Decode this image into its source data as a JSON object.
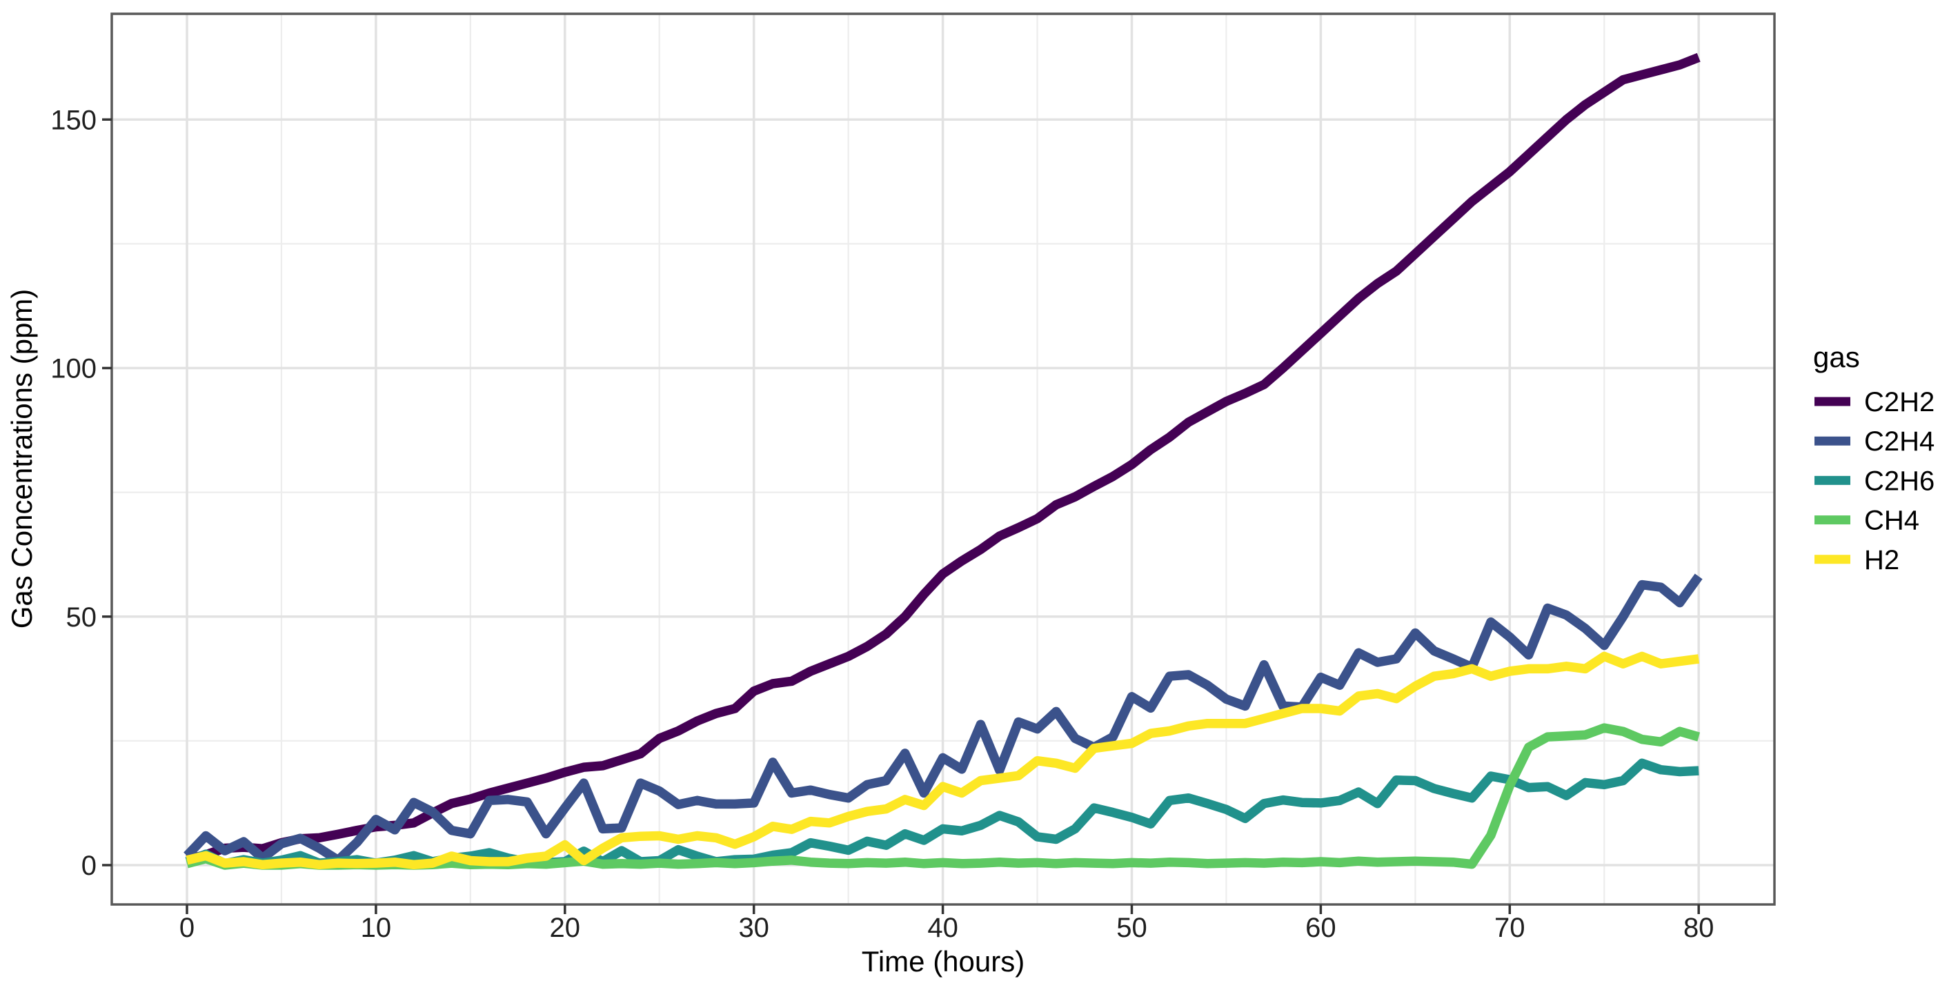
{
  "chart_data": {
    "type": "line",
    "title": "",
    "xlabel": "Time (hours)",
    "ylabel": "Gas Concentrations (ppm)",
    "legend_title": "gas",
    "legend_position": "right",
    "grid": "major+minor",
    "xlim": [
      -4,
      84
    ],
    "ylim": [
      -8,
      171
    ],
    "x_ticks": [
      0,
      10,
      20,
      30,
      40,
      50,
      60,
      70,
      80
    ],
    "x_minor_ticks": [
      5,
      15,
      25,
      35,
      45,
      55,
      65,
      75
    ],
    "y_ticks": [
      0,
      50,
      100,
      150
    ],
    "y_minor_ticks": [
      25,
      75,
      125
    ],
    "x": [
      0,
      1,
      2,
      3,
      4,
      5,
      6,
      7,
      8,
      9,
      10,
      11,
      12,
      13,
      14,
      15,
      16,
      17,
      18,
      19,
      20,
      21,
      22,
      23,
      24,
      25,
      26,
      27,
      28,
      29,
      30,
      31,
      32,
      33,
      34,
      35,
      36,
      37,
      38,
      39,
      40,
      41,
      42,
      43,
      44,
      45,
      46,
      47,
      48,
      49,
      50,
      51,
      52,
      53,
      54,
      55,
      56,
      57,
      58,
      59,
      60,
      61,
      62,
      63,
      64,
      65,
      66,
      67,
      68,
      69,
      70,
      71,
      72,
      73,
      74,
      75,
      76,
      77,
      78,
      79,
      80
    ],
    "series": [
      {
        "name": "C2H2",
        "color": "#440154",
        "values": [
          1.1,
          2.1,
          3.4,
          3.6,
          3.3,
          4.5,
          5.3,
          5.5,
          6.2,
          7,
          7.7,
          8,
          8.5,
          10.5,
          12.4,
          13.3,
          14.5,
          15.5,
          16.5,
          17.5,
          18.7,
          19.7,
          20,
          21.2,
          22.4,
          25.5,
          27,
          29,
          30.5,
          31.5,
          35,
          36.5,
          37,
          39,
          40.5,
          42,
          44,
          46.5,
          50,
          54.5,
          58.6,
          61.2,
          63.5,
          66.2,
          67.9,
          69.7,
          72.5,
          74.1,
          76.2,
          78.2,
          80.6,
          83.6,
          86.1,
          89.1,
          91.2,
          93.3,
          94.9,
          96.7,
          100,
          103.5,
          107,
          110.5,
          114,
          117,
          119.5,
          123,
          126.5,
          130,
          133.5,
          136.5,
          139.5,
          143,
          146.5,
          150,
          153,
          155.5,
          158,
          159,
          160,
          161,
          162.5
        ]
      },
      {
        "name": "C2H4",
        "color": "#3B528B",
        "values": [
          1.9,
          5.9,
          2.9,
          4.7,
          1.4,
          4.3,
          5.4,
          3.4,
          1,
          4.6,
          9.2,
          7.1,
          12.6,
          10.7,
          7,
          6.3,
          13,
          13.2,
          12.7,
          6.3,
          11.5,
          16.5,
          7.3,
          7.5,
          16.5,
          14.9,
          12.2,
          13,
          12.3,
          12.3,
          12.5,
          20.7,
          14.5,
          15.1,
          14.2,
          13.5,
          16.2,
          17,
          22.5,
          14.5,
          21.6,
          19.3,
          28.3,
          19.1,
          28.8,
          27.4,
          30.9,
          25.5,
          23.7,
          25.8,
          33.9,
          31.6,
          38,
          38.3,
          36.2,
          33.4,
          32,
          40.3,
          32,
          31.8,
          37.8,
          36.2,
          42.7,
          40.8,
          41.5,
          46.7,
          43.1,
          41.5,
          39.8,
          48.9,
          45.9,
          42.3,
          51.7,
          50.3,
          47.6,
          44.2,
          50,
          56.4,
          55.9,
          52.8,
          58.1
        ]
      },
      {
        "name": "C2H6",
        "color": "#21918C",
        "values": [
          0.7,
          2.2,
          0.3,
          1.1,
          0.4,
          1,
          1.9,
          0.4,
          0.7,
          1.1,
          0.4,
          1,
          1.9,
          0.7,
          1.4,
          1.8,
          2.5,
          1.4,
          0.7,
          0.5,
          0.7,
          2.8,
          0.7,
          2.9,
          0.7,
          0.9,
          3.1,
          1.8,
          0.7,
          1.1,
          1.2,
          2,
          2.5,
          4.5,
          3.8,
          3,
          4.8,
          4,
          6.3,
          5,
          7.3,
          6.9,
          8,
          10,
          8.7,
          5.7,
          5.2,
          7.3,
          11.5,
          10.6,
          9.6,
          8.3,
          13,
          13.5,
          12.4,
          11.2,
          9.4,
          12.4,
          13.1,
          12.6,
          12.5,
          13,
          14.7,
          12.4,
          17.1,
          17,
          15.4,
          14.4,
          13.5,
          17.9,
          17.2,
          15.6,
          15.8,
          14,
          16.6,
          16.2,
          17,
          20.5,
          19.2,
          18.8,
          19
        ]
      },
      {
        "name": "CH4",
        "color": "#5EC962",
        "values": [
          0.3,
          1.3,
          0,
          0.4,
          0,
          0,
          0.3,
          0,
          0,
          0.1,
          0,
          0.1,
          0,
          0.1,
          0.4,
          0.1,
          0.2,
          0.1,
          0.3,
          0.2,
          0.5,
          0.8,
          0.2,
          0.3,
          0.2,
          0.4,
          0.2,
          0.3,
          0.5,
          0.3,
          0.5,
          0.8,
          1,
          0.6,
          0.4,
          0.3,
          0.5,
          0.4,
          0.6,
          0.3,
          0.5,
          0.3,
          0.4,
          0.6,
          0.4,
          0.5,
          0.3,
          0.5,
          0.4,
          0.3,
          0.5,
          0.4,
          0.6,
          0.5,
          0.3,
          0.4,
          0.5,
          0.4,
          0.6,
          0.5,
          0.7,
          0.5,
          0.8,
          0.6,
          0.7,
          0.8,
          0.7,
          0.6,
          0.2,
          6,
          16,
          23.7,
          25.8,
          26,
          26.2,
          27.6,
          26.9,
          25.3,
          24.8,
          26.9,
          25.8
        ]
      },
      {
        "name": "H2",
        "color": "#FDE725",
        "values": [
          1,
          1.9,
          0.4,
          0.7,
          0.1,
          0.4,
          0.6,
          0.1,
          0.4,
          0.3,
          0.4,
          0.6,
          0.1,
          0.4,
          1.8,
          0.9,
          0.7,
          0.7,
          1.4,
          1.8,
          4.1,
          0.9,
          3.4,
          5.5,
          5.8,
          5.9,
          5.2,
          5.9,
          5.5,
          4.2,
          5.7,
          7.8,
          7.2,
          8.8,
          8.5,
          9.8,
          10.8,
          11.3,
          13.2,
          12,
          15.8,
          14.5,
          17,
          17.5,
          18,
          21,
          20.5,
          19.5,
          23.5,
          24,
          24.5,
          26.5,
          27,
          28,
          28.5,
          28.5,
          28.5,
          29.5,
          30.5,
          31.5,
          31.5,
          31,
          34,
          34.5,
          33.5,
          36,
          38,
          38.5,
          39.5,
          38,
          39,
          39.5,
          39.5,
          40,
          39.5,
          42,
          40.5,
          42,
          40.5,
          41,
          41.5
        ]
      }
    ],
    "style": {
      "background": "#ffffff",
      "panel_border_color": "#595959",
      "grid_major_color": "#e2e2e2",
      "grid_minor_color": "#ededed",
      "tick_color": "#333333",
      "line_width": 13.5
    }
  }
}
